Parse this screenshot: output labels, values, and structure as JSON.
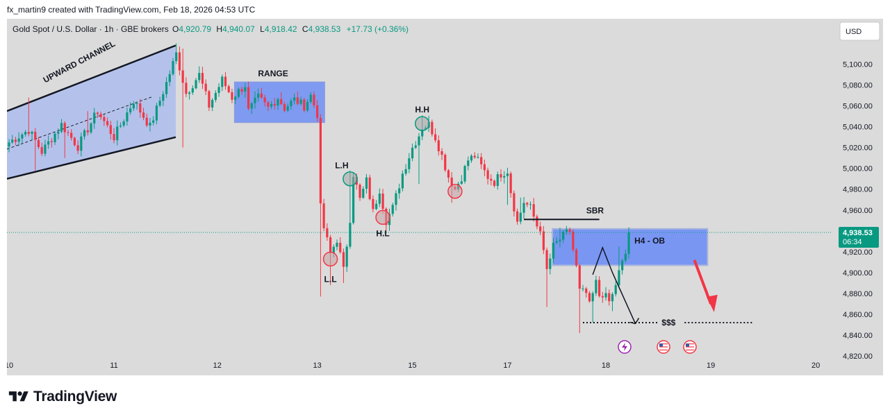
{
  "header": {
    "attribution": "fx_martin9 created with TradingView.com, Feb 18, 2026 04:53 UTC"
  },
  "legend": {
    "symbol": "Gold Spot / U.S. Dollar · 1h · GBE brokers",
    "o_label": "O",
    "o_value": "4,920.79",
    "h_label": "H",
    "h_value": "4,940.07",
    "l_label": "L",
    "l_value": "4,918.42",
    "c_label": "C",
    "c_value": "4,938.53",
    "change": "+17.73 (+0.36%)"
  },
  "currency_button": "USD",
  "last_price": {
    "value": "4,938.53",
    "countdown": "06:34"
  },
  "annotations": {
    "upward_channel": "UPWARD CHANNEL",
    "range": "RANGE",
    "hh": "H.H",
    "lh": "L.H",
    "ll": "L.L",
    "hl": "H.L",
    "sbr": "SBR",
    "ob": "H4 - OB",
    "liquidity": "$$$"
  },
  "footer": {
    "brand": "TradingView"
  },
  "colors": {
    "background": "#dbdbdb",
    "up": "#089981",
    "down": "#f23645",
    "zone_fill": "#6e8ef5",
    "channel_fill": "#b4c2eb",
    "last_price_line": "#089981",
    "arrow": "#f23645"
  },
  "chart_data": {
    "type": "candlestick",
    "title": "Gold Spot / U.S. Dollar · 1h · GBE brokers",
    "x_tick_labels": [
      "10",
      "11",
      "12",
      "13",
      "15",
      "17",
      "18",
      "19",
      "20"
    ],
    "y_tick_labels": [
      "5,100.00",
      "5,080.00",
      "5,060.00",
      "5,040.00",
      "5,020.00",
      "5,000.00",
      "4,980.00",
      "4,960.00",
      "4,940.00",
      "4,920.00",
      "4,900.00",
      "4,880.00",
      "4,860.00",
      "4,840.00",
      "4,820.00"
    ],
    "y_range": [
      4818,
      5125
    ],
    "last_price": 4938.53,
    "path": [
      [
        0,
        5025
      ],
      [
        6,
        5037
      ],
      [
        10,
        5016
      ],
      [
        16,
        5042
      ],
      [
        21,
        5021
      ],
      [
        27,
        5055
      ],
      [
        32,
        5030
      ],
      [
        38,
        5065
      ],
      [
        43,
        5040
      ],
      [
        48,
        5082
      ],
      [
        51,
        5110
      ],
      [
        54,
        5072
      ],
      [
        58,
        5090
      ],
      [
        61,
        5060
      ],
      [
        65,
        5085
      ],
      [
        68,
        5068
      ],
      [
        72,
        5080
      ],
      [
        73,
        5055
      ],
      [
        76,
        5068
      ],
      [
        79,
        5058
      ],
      [
        82,
        5068
      ],
      [
        84,
        5058
      ],
      [
        87,
        5066
      ],
      [
        90,
        5060
      ],
      [
        92,
        5070
      ],
      [
        94,
        5052
      ],
      [
        95,
        4962
      ],
      [
        96,
        4943
      ],
      [
        98,
        4918
      ],
      [
        100,
        4932
      ],
      [
        102,
        4902
      ],
      [
        104,
        4952
      ],
      [
        105,
        4995
      ],
      [
        107,
        4970
      ],
      [
        109,
        4988
      ],
      [
        111,
        4958
      ],
      [
        113,
        4980
      ],
      [
        115,
        4950
      ],
      [
        117,
        4962
      ],
      [
        120,
        4995
      ],
      [
        123,
        5020
      ],
      [
        125,
        5032
      ],
      [
        126,
        5040
      ],
      [
        128,
        5042
      ],
      [
        130,
        5030
      ],
      [
        132,
        5012
      ],
      [
        134,
        4992
      ],
      [
        136,
        4980
      ],
      [
        138,
        4992
      ],
      [
        140,
        5008
      ],
      [
        142,
        5012
      ],
      [
        144,
        5002
      ],
      [
        146,
        4992
      ],
      [
        148,
        4987
      ],
      [
        150,
        4995
      ],
      [
        152,
        4998
      ],
      [
        153,
        4978
      ],
      [
        155,
        4948
      ],
      [
        157,
        4968
      ],
      [
        159,
        4962
      ],
      [
        161,
        4945
      ],
      [
        162,
        4943
      ],
      [
        163,
        4918
      ],
      [
        164,
        4902
      ],
      [
        166,
        4925
      ],
      [
        168,
        4932
      ],
      [
        170,
        4938
      ],
      [
        171,
        4940
      ],
      [
        172,
        4922
      ],
      [
        173,
        4905
      ],
      [
        174,
        4882
      ],
      [
        176,
        4880
      ],
      [
        177,
        4868
      ],
      [
        179,
        4890
      ],
      [
        180,
        4878
      ],
      [
        181,
        4880
      ],
      [
        183,
        4872
      ],
      [
        184,
        4878
      ],
      [
        186,
        4900
      ],
      [
        188,
        4918
      ],
      [
        189,
        4938
      ]
    ],
    "wick_highs": [
      [
        6,
        5068
      ],
      [
        24,
        5055
      ],
      [
        51,
        5120
      ],
      [
        53,
        5115
      ],
      [
        58,
        5098
      ],
      [
        83,
        5073
      ],
      [
        104,
        4998
      ],
      [
        126,
        5051
      ],
      [
        156,
        4972
      ],
      [
        168,
        4943
      ],
      [
        186,
        4925
      ]
    ],
    "wick_lows": [
      [
        8,
        4998
      ],
      [
        17,
        5010
      ],
      [
        53,
        5020
      ],
      [
        95,
        4877
      ],
      [
        98,
        4888
      ],
      [
        102,
        4890
      ],
      [
        125,
        4985
      ],
      [
        135,
        4967
      ],
      [
        152,
        4965
      ],
      [
        164,
        4867
      ],
      [
        174,
        4842
      ],
      [
        178,
        4852
      ],
      [
        184,
        4863
      ]
    ],
    "zones": {
      "upward_channel": {
        "start_bar": 0,
        "end_bar": 50,
        "lower": [
          4990,
          5030
        ],
        "upper": [
          5055,
          5118
        ]
      },
      "range": {
        "start_bar": 70,
        "end_bar": 95,
        "low": 5044,
        "high": 5083
      },
      "h4_ob": {
        "start_bar": 167,
        "end_bar": 213,
        "low": 4907,
        "high": 4942
      }
    },
    "levels": {
      "sbr": 4951,
      "liquidity": 4852
    },
    "swing_points": {
      "hh": 5043,
      "lh": 4990,
      "ll": 4913,
      "hl": 4953
    }
  }
}
